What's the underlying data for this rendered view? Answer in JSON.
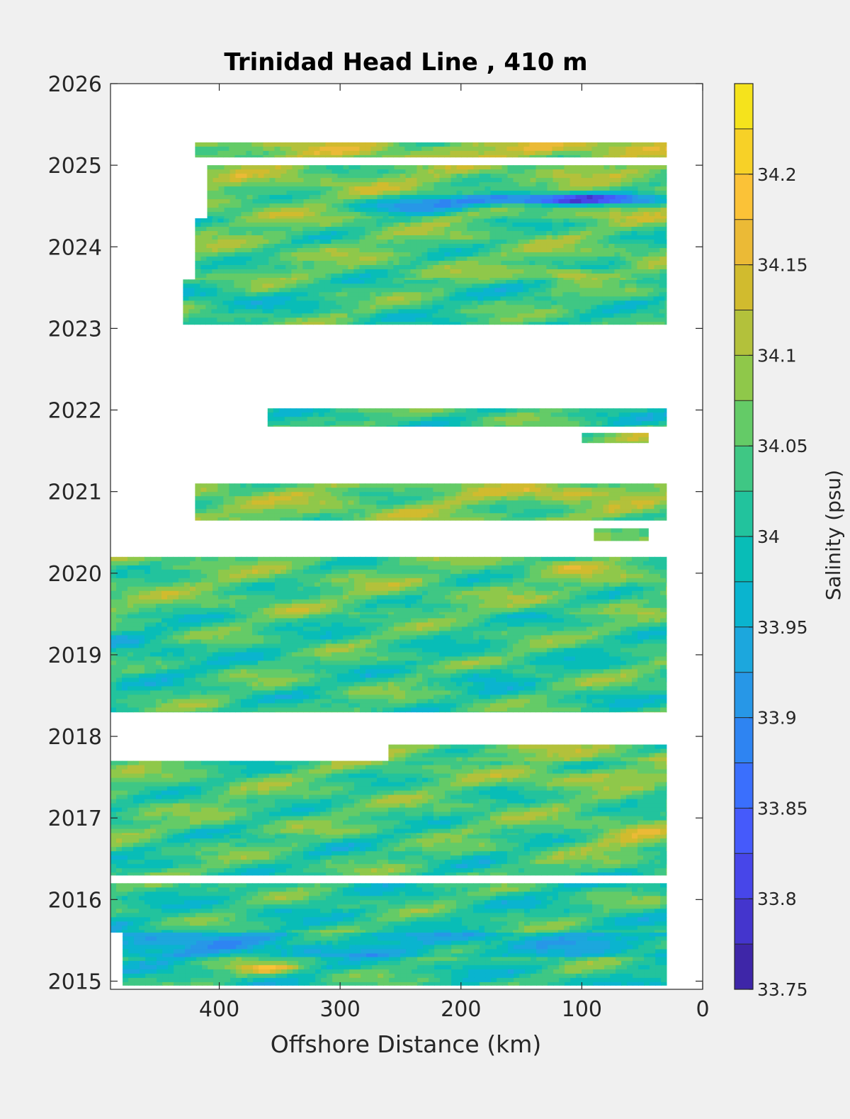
{
  "chart_data": {
    "type": "heatmap",
    "title": "Trinidad Head Line , 410 m",
    "xlabel": "Offshore Distance (km)",
    "ylabel": "",
    "x_reversed": true,
    "xlim": [
      490,
      0
    ],
    "ylim": [
      2014.9,
      2026
    ],
    "xticks": [
      400,
      300,
      200,
      100,
      0
    ],
    "yticks": [
      2015,
      2016,
      2017,
      2018,
      2019,
      2020,
      2021,
      2022,
      2023,
      2024,
      2025,
      2026
    ],
    "colorbar": {
      "label": "Salinity (psu)",
      "range": [
        33.75,
        34.25
      ],
      "levels": [
        33.75,
        33.775,
        33.8,
        33.825,
        33.85,
        33.875,
        33.9,
        33.925,
        33.95,
        33.975,
        34.0,
        34.025,
        34.05,
        34.075,
        34.1,
        34.125,
        34.15,
        34.175,
        34.2,
        34.225,
        34.25
      ],
      "tick_values": [
        33.75,
        33.8,
        33.85,
        33.9,
        33.95,
        34.0,
        34.05,
        34.1,
        34.15,
        34.2
      ],
      "tick_labels": [
        "33.75",
        "33.8",
        "33.85",
        "33.9",
        "33.95",
        "34",
        "34.05",
        "34.1",
        "34.15",
        "34.2"
      ],
      "colors": [
        "#3e26a8",
        "#4435cd",
        "#4746e9",
        "#455afb",
        "#3a6ffd",
        "#2e84f2",
        "#2797e7",
        "#1ca7dd",
        "#0ab4cf",
        "#08bdb7",
        "#22c39d",
        "#3fc784",
        "#64cb67",
        "#8fc84a",
        "#b3c13b",
        "#d1bb2e",
        "#ebba36",
        "#fbc237",
        "#f7d127",
        "#f5e31c"
      ]
    },
    "bands": [
      {
        "y": [
          2014.95,
          2015.3
        ],
        "x": [
          480,
          30
        ],
        "base": 34.02
      },
      {
        "y": [
          2015.3,
          2015.6
        ],
        "x": [
          480,
          30
        ],
        "base": 33.97
      },
      {
        "y": [
          2015.6,
          2016.2
        ],
        "x": [
          490,
          30
        ],
        "base": 34.02
      },
      {
        "y": [
          2016.3,
          2016.8
        ],
        "x": [
          490,
          30
        ],
        "base": 34.03
      },
      {
        "y": [
          2016.8,
          2017.7
        ],
        "x": [
          490,
          30
        ],
        "base": 34.04
      },
      {
        "y": [
          2017.7,
          2017.9
        ],
        "x": [
          260,
          30
        ],
        "base": 34.07
      },
      {
        "y": [
          2018.3,
          2019.5
        ],
        "x": [
          490,
          30
        ],
        "base": 34.03
      },
      {
        "y": [
          2019.5,
          2020.2
        ],
        "x": [
          490,
          30
        ],
        "base": 34.05
      },
      {
        "y": [
          2020.4,
          2020.55
        ],
        "x": [
          90,
          45
        ],
        "base": 34.06
      },
      {
        "y": [
          2020.65,
          2021.1
        ],
        "x": [
          420,
          30
        ],
        "base": 34.07
      },
      {
        "y": [
          2021.6,
          2021.72
        ],
        "x": [
          100,
          45
        ],
        "base": 34.06
      },
      {
        "y": [
          2021.8,
          2022.02
        ],
        "x": [
          360,
          30
        ],
        "base": 34.03
      },
      {
        "y": [
          2023.05,
          2023.6
        ],
        "x": [
          430,
          30
        ],
        "base": 34.03
      },
      {
        "y": [
          2023.6,
          2024.35
        ],
        "x": [
          420,
          30
        ],
        "base": 34.05
      },
      {
        "y": [
          2024.35,
          2025.0
        ],
        "x": [
          410,
          30
        ],
        "base": 34.07
      },
      {
        "y": [
          2025.1,
          2025.28
        ],
        "x": [
          420,
          30
        ],
        "base": 34.09
      }
    ],
    "features": [
      {
        "x": 120,
        "y": 2024.58,
        "sx": 90,
        "sy": 0.07,
        "amp": -0.26
      },
      {
        "x": 230,
        "y": 2024.5,
        "sx": 70,
        "sy": 0.1,
        "amp": -0.12
      },
      {
        "x": 110,
        "y": 2023.67,
        "sx": 22,
        "sy": 0.06,
        "amp": 0.12
      },
      {
        "x": 360,
        "y": 2015.15,
        "sx": 25,
        "sy": 0.06,
        "amp": 0.13
      },
      {
        "x": 60,
        "y": 2016.75,
        "sx": 50,
        "sy": 0.15,
        "amp": 0.08
      },
      {
        "x": 90,
        "y": 2017.5,
        "sx": 60,
        "sy": 0.1,
        "amp": 0.07
      },
      {
        "x": 180,
        "y": 2018.75,
        "sx": 30,
        "sy": 0.1,
        "amp": -0.06
      },
      {
        "x": 470,
        "y": 2015.45,
        "sx": 60,
        "sy": 0.2,
        "amp": -0.05
      },
      {
        "x": 460,
        "y": 2019.0,
        "sx": 40,
        "sy": 0.3,
        "amp": -0.04
      },
      {
        "x": 110,
        "y": 2021.0,
        "sx": 40,
        "sy": 0.08,
        "amp": 0.07
      },
      {
        "x": 110,
        "y": 2020.1,
        "sx": 30,
        "sy": 0.08,
        "amp": 0.06
      },
      {
        "x": 120,
        "y": 2025.2,
        "sx": 60,
        "sy": 0.08,
        "amp": 0.06
      },
      {
        "x": 400,
        "y": 2023.35,
        "sx": 40,
        "sy": 0.15,
        "amp": -0.05
      }
    ]
  }
}
